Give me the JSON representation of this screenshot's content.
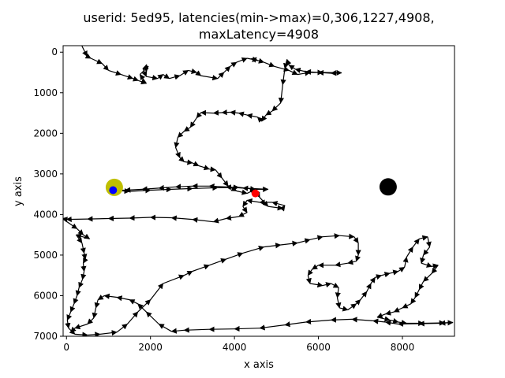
{
  "chart_data": {
    "type": "scatter",
    "title_line1": "userid: 5ed95, latencies(min->max)=0,306,1227,4908,",
    "title_line2": "maxLatency=4908",
    "xlabel": "x axis",
    "ylabel": "y axis",
    "xlim": [
      -80,
      9240
    ],
    "ylim": [
      7000,
      -160
    ],
    "y_inverted": true,
    "xticks": [
      {
        "value": 0,
        "label": "0"
      },
      {
        "value": 2000,
        "label": "2000"
      },
      {
        "value": 4000,
        "label": "4000"
      },
      {
        "value": 6000,
        "label": "6000"
      },
      {
        "value": 8000,
        "label": "8000"
      }
    ],
    "yticks": [
      {
        "value": 0,
        "label": "0"
      },
      {
        "value": 1000,
        "label": "1000"
      },
      {
        "value": 2000,
        "label": "2000"
      },
      {
        "value": 3000,
        "label": "3000"
      },
      {
        "value": 4000,
        "label": "4000"
      },
      {
        "value": 5000,
        "label": "5000"
      },
      {
        "value": 6000,
        "label": "6000"
      },
      {
        "value": 7000,
        "label": "7000"
      }
    ],
    "grid": false,
    "markers": [
      {
        "name": "yellow",
        "x": 1140,
        "y": 3330,
        "color": "#bfbf00",
        "radius": 11
      },
      {
        "name": "blue",
        "x": 1110,
        "y": 3400,
        "color": "#0000ff",
        "radius": 5
      },
      {
        "name": "red",
        "x": 4500,
        "y": 3480,
        "color": "#ff0000",
        "radius": 5
      },
      {
        "name": "black",
        "x": 7660,
        "y": 3320,
        "color": "#000000",
        "radius": 11
      }
    ],
    "path_color": "#000000",
    "path": [
      [
        370,
        -150
      ],
      [
        490,
        100
      ],
      [
        580,
        150
      ],
      [
        850,
        280
      ],
      [
        1000,
        450
      ],
      [
        1300,
        550
      ],
      [
        1580,
        650
      ],
      [
        1710,
        700
      ],
      [
        1900,
        770
      ],
      [
        1750,
        550
      ],
      [
        1950,
        350
      ],
      [
        1820,
        400
      ],
      [
        1900,
        600
      ],
      [
        2170,
        650
      ],
      [
        2300,
        550
      ],
      [
        2450,
        650
      ],
      [
        2700,
        580
      ],
      [
        2900,
        450
      ],
      [
        3100,
        500
      ],
      [
        3200,
        580
      ],
      [
        3600,
        650
      ],
      [
        3750,
        500
      ],
      [
        3900,
        350
      ],
      [
        4050,
        250
      ],
      [
        4300,
        150
      ],
      [
        4550,
        200
      ],
      [
        4400,
        160
      ],
      [
        4700,
        250
      ],
      [
        4950,
        350
      ],
      [
        5300,
        450
      ],
      [
        5500,
        550
      ],
      [
        5800,
        500
      ],
      [
        6100,
        500
      ],
      [
        6550,
        510
      ],
      [
        6300,
        520
      ],
      [
        6000,
        500
      ],
      [
        5700,
        480
      ],
      [
        5450,
        420
      ],
      [
        5300,
        320
      ],
      [
        5250,
        180
      ],
      [
        5200,
        400
      ],
      [
        5150,
        800
      ],
      [
        5100,
        1250
      ],
      [
        4900,
        1450
      ],
      [
        4750,
        1550
      ],
      [
        4650,
        1700
      ],
      [
        4550,
        1600
      ],
      [
        4300,
        1550
      ],
      [
        4100,
        1500
      ],
      [
        3900,
        1480
      ],
      [
        3700,
        1490
      ],
      [
        3500,
        1500
      ],
      [
        3200,
        1490
      ],
      [
        3100,
        1620
      ],
      [
        2950,
        1850
      ],
      [
        2800,
        1950
      ],
      [
        2650,
        2100
      ],
      [
        2600,
        2350
      ],
      [
        2700,
        2600
      ],
      [
        2800,
        2700
      ],
      [
        3000,
        2730
      ],
      [
        3150,
        2800
      ],
      [
        3400,
        2880
      ],
      [
        3550,
        2900
      ],
      [
        3700,
        3100
      ],
      [
        3850,
        3300
      ],
      [
        4050,
        3420
      ],
      [
        4300,
        3480
      ],
      [
        4500,
        3380
      ],
      [
        4800,
        3380
      ],
      [
        4200,
        3350
      ],
      [
        3800,
        3320
      ],
      [
        3400,
        3300
      ],
      [
        3000,
        3300
      ],
      [
        2600,
        3320
      ],
      [
        2200,
        3350
      ],
      [
        1800,
        3380
      ],
      [
        1400,
        3400
      ],
      [
        1110,
        3400
      ],
      [
        1500,
        3430
      ],
      [
        2000,
        3400
      ],
      [
        2500,
        3380
      ],
      [
        3000,
        3360
      ],
      [
        3600,
        3340
      ],
      [
        4100,
        3330
      ],
      [
        4500,
        3380
      ],
      [
        4600,
        3580
      ],
      [
        4800,
        3800
      ],
      [
        5150,
        3850
      ],
      [
        5200,
        3780
      ],
      [
        4900,
        3700
      ],
      [
        4600,
        3700
      ],
      [
        4300,
        3650
      ],
      [
        4200,
        3800
      ],
      [
        4300,
        3950
      ],
      [
        4100,
        4050
      ],
      [
        3800,
        4100
      ],
      [
        3500,
        4180
      ],
      [
        3000,
        4120
      ],
      [
        2500,
        4080
      ],
      [
        2000,
        4070
      ],
      [
        1500,
        4090
      ],
      [
        1000,
        4100
      ],
      [
        500,
        4110
      ],
      [
        0,
        4120
      ],
      [
        -100,
        4100
      ],
      [
        250,
        4350
      ],
      [
        400,
        4500
      ],
      [
        550,
        4600
      ],
      [
        230,
        4500
      ],
      [
        370,
        4700
      ],
      [
        420,
        4950
      ],
      [
        450,
        5100
      ],
      [
        400,
        5200
      ],
      [
        420,
        5400
      ],
      [
        380,
        5600
      ],
      [
        300,
        5800
      ],
      [
        250,
        6000
      ],
      [
        180,
        6200
      ],
      [
        100,
        6400
      ],
      [
        20,
        6600
      ],
      [
        50,
        6800
      ],
      [
        200,
        6950
      ],
      [
        500,
        6970
      ],
      [
        800,
        6950
      ],
      [
        1200,
        6900
      ],
      [
        1450,
        6700
      ],
      [
        1700,
        6400
      ],
      [
        2000,
        6100
      ],
      [
        2300,
        5700
      ],
      [
        2800,
        5500
      ],
      [
        3000,
        5400
      ],
      [
        3400,
        5250
      ],
      [
        3800,
        5100
      ],
      [
        4200,
        4950
      ],
      [
        4700,
        4800
      ],
      [
        5100,
        4750
      ],
      [
        5500,
        4700
      ],
      [
        5800,
        4620
      ],
      [
        6100,
        4550
      ],
      [
        6500,
        4520
      ],
      [
        6850,
        4550
      ],
      [
        6950,
        4700
      ],
      [
        6950,
        5000
      ],
      [
        6900,
        5150
      ],
      [
        6700,
        5200
      ],
      [
        6400,
        5250
      ],
      [
        6000,
        5250
      ],
      [
        5850,
        5350
      ],
      [
        5750,
        5500
      ],
      [
        5800,
        5700
      ],
      [
        6100,
        5750
      ],
      [
        6300,
        5700
      ],
      [
        6480,
        5800
      ],
      [
        6450,
        6050
      ],
      [
        6500,
        6300
      ],
      [
        6700,
        6350
      ],
      [
        6900,
        6200
      ],
      [
        7000,
        6100
      ],
      [
        7150,
        5900
      ],
      [
        7250,
        5700
      ],
      [
        7350,
        5550
      ],
      [
        7500,
        5500
      ],
      [
        7700,
        5450
      ],
      [
        7900,
        5400
      ],
      [
        8050,
        5300
      ],
      [
        8100,
        5050
      ],
      [
        8250,
        4800
      ],
      [
        8400,
        4600
      ],
      [
        8600,
        4550
      ],
      [
        8650,
        4800
      ],
      [
        8500,
        5000
      ],
      [
        8450,
        5200
      ],
      [
        8700,
        5280
      ],
      [
        8850,
        5250
      ],
      [
        8700,
        5450
      ],
      [
        8500,
        5650
      ],
      [
        8400,
        5850
      ],
      [
        8300,
        6050
      ],
      [
        8200,
        6200
      ],
      [
        8000,
        6300
      ],
      [
        7800,
        6400
      ],
      [
        7600,
        6450
      ],
      [
        7400,
        6530
      ],
      [
        7700,
        6600
      ],
      [
        7900,
        6650
      ],
      [
        8100,
        6680
      ],
      [
        8500,
        6680
      ],
      [
        9000,
        6670
      ],
      [
        9200,
        6660
      ],
      [
        8900,
        6680
      ],
      [
        8400,
        6690
      ],
      [
        7900,
        6700
      ],
      [
        7600,
        6650
      ],
      [
        7300,
        6620
      ],
      [
        6800,
        6580
      ],
      [
        6300,
        6600
      ],
      [
        5700,
        6650
      ],
      [
        5200,
        6720
      ],
      [
        4600,
        6800
      ],
      [
        4000,
        6820
      ],
      [
        3400,
        6830
      ],
      [
        2800,
        6850
      ],
      [
        2500,
        6880
      ],
      [
        2200,
        6700
      ],
      [
        1900,
        6400
      ],
      [
        1700,
        6200
      ],
      [
        1500,
        6100
      ],
      [
        1200,
        6040
      ],
      [
        900,
        6000
      ],
      [
        750,
        6100
      ],
      [
        700,
        6300
      ],
      [
        650,
        6550
      ],
      [
        500,
        6700
      ],
      [
        200,
        6800
      ],
      [
        100,
        6900
      ]
    ]
  }
}
